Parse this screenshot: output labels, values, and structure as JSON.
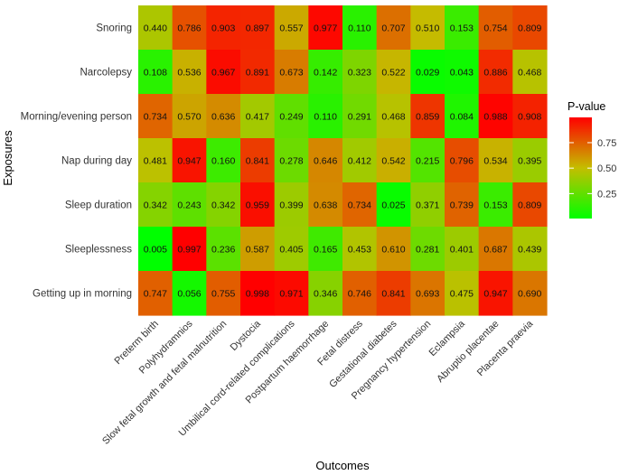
{
  "chart_data": {
    "type": "heatmap",
    "xlabel": "Outcomes",
    "ylabel": "Exposures",
    "x_categories": [
      "Preterm birth",
      "Polyhydramnios",
      "Slow fetal growth and fetal malnutrition",
      "Dystocia",
      "Umbilical cord-related complications",
      "Postpartum haemorrhage",
      "Fetal distress",
      "Gestational diabetes",
      "Pregnancy hypertension",
      "Eclampsia",
      "Abruptio placentae",
      "Placenta praevia"
    ],
    "y_categories": [
      "Snoring",
      "Narcolepsy",
      "Morning/evening person",
      "Nap during day",
      "Sleep duration",
      "Sleeplessness",
      "Getting up in morning"
    ],
    "values": [
      [
        0.44,
        0.786,
        0.903,
        0.897,
        0.557,
        0.977,
        0.11,
        0.707,
        0.51,
        0.153,
        0.754,
        0.809
      ],
      [
        0.108,
        0.536,
        0.967,
        0.891,
        0.673,
        0.142,
        0.323,
        0.522,
        0.029,
        0.043,
        0.886,
        0.468
      ],
      [
        0.734,
        0.57,
        0.636,
        0.417,
        0.249,
        0.11,
        0.291,
        0.468,
        0.859,
        0.084,
        0.988,
        0.908
      ],
      [
        0.481,
        0.947,
        0.16,
        0.841,
        0.278,
        0.646,
        0.412,
        0.542,
        0.215,
        0.796,
        0.534,
        0.395
      ],
      [
        0.342,
        0.243,
        0.342,
        0.959,
        0.399,
        0.638,
        0.734,
        0.025,
        0.371,
        0.739,
        0.153,
        0.809
      ],
      [
        0.005,
        0.997,
        0.236,
        0.587,
        0.405,
        0.165,
        0.453,
        0.61,
        0.281,
        0.401,
        0.687,
        0.439
      ],
      [
        0.747,
        0.056,
        0.755,
        0.998,
        0.971,
        0.346,
        0.746,
        0.841,
        0.693,
        0.475,
        0.947,
        0.69
      ]
    ],
    "value_labels": [
      [
        "0.440",
        "0.786",
        "0.903",
        "0.897",
        "0.557",
        "0.977",
        "0.110",
        "0.707",
        "0.510",
        "0.153",
        "0.754",
        "0.809"
      ],
      [
        "0.108",
        "0.536",
        "0.967",
        "0.891",
        "0.673",
        "0.142",
        "0.323",
        "0.522",
        "0.029",
        "0.043",
        "0.886",
        "0.468"
      ],
      [
        "0.734",
        "0.570",
        "0.636",
        "0.417",
        "0.249",
        "0.110",
        "0.291",
        "0.468",
        "0.859",
        "0.084",
        "0.988",
        "0.908"
      ],
      [
        "0.481",
        "0.947",
        "0.160",
        "0.841",
        "0.278",
        "0.646",
        "0.412",
        "0.542",
        "0.215",
        "0.796",
        "0.534",
        "0.395"
      ],
      [
        "0.342",
        "0.243",
        "0.342",
        "0.959",
        "0.399",
        "0.638",
        "0.734",
        "0.025",
        "0.371",
        "0.739",
        "0.153",
        "0.809"
      ],
      [
        "0.005",
        "0.997",
        "0.236",
        "0.587",
        "0.405",
        "0.165",
        "0.453",
        "0.610",
        "0.281",
        "0.401",
        "0.687",
        "0.439"
      ],
      [
        "0.747",
        "0.056",
        "0.755",
        "0.998",
        "0.971",
        "0.346",
        "0.746",
        "0.841",
        "0.693",
        "0.475",
        "0.947",
        "0.690"
      ]
    ],
    "legend": {
      "title": "P-value",
      "ticks": [
        0.25,
        0.5,
        0.75
      ],
      "tick_labels": [
        "0.25",
        "0.50",
        "0.75"
      ],
      "range": [
        0.005,
        0.998
      ],
      "low_color": "#00ff00",
      "high_color": "#ff0000",
      "position": "right"
    }
  }
}
